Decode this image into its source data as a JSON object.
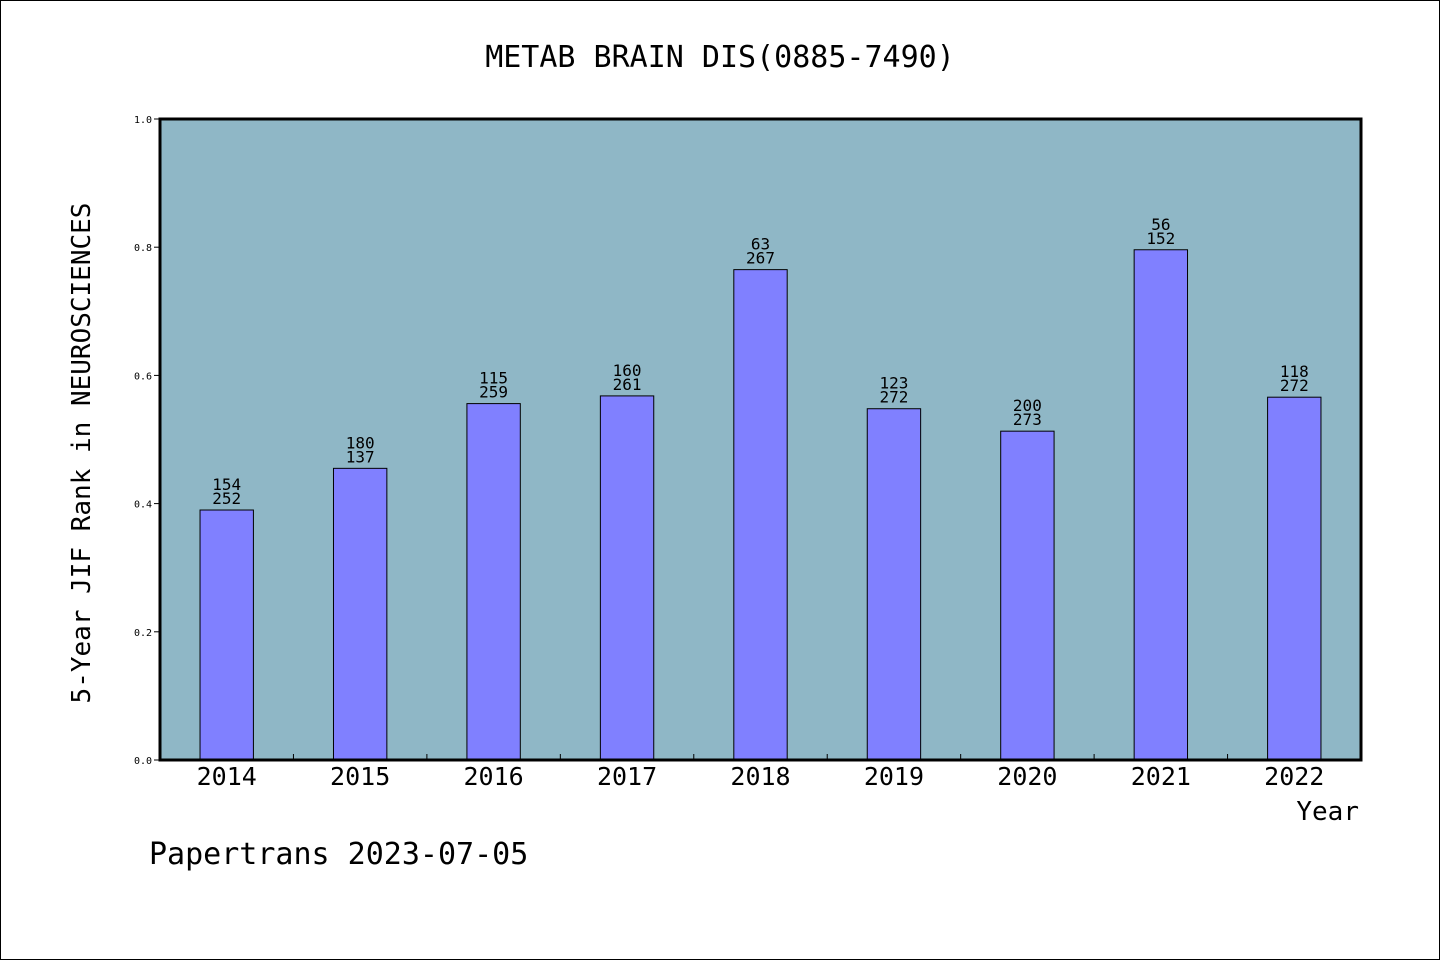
{
  "chart_data": {
    "type": "bar",
    "title": "METAB BRAIN DIS(0885-7490)",
    "xlabel": "Year",
    "ylabel": "5-Year JIF Rank in NEUROSCIENCES",
    "ylim": [
      0.0,
      1.0
    ],
    "yticks": [
      "0.0",
      "0.2",
      "0.4",
      "0.6",
      "0.8",
      "1.0"
    ],
    "categories": [
      "2014",
      "2015",
      "2016",
      "2017",
      "2018",
      "2019",
      "2020",
      "2021",
      "2022"
    ],
    "values": [
      0.39,
      0.455,
      0.556,
      0.568,
      0.765,
      0.548,
      0.513,
      0.796,
      0.566
    ],
    "labels_top": [
      "154",
      "180",
      "115",
      "160",
      "63",
      "123",
      "200",
      "56",
      "118"
    ],
    "labels_bottom": [
      "252",
      "137",
      "259",
      "261",
      "267",
      "272",
      "273",
      "152",
      "272"
    ],
    "grid": false,
    "colors": {
      "plot_bg": "#8fb7c6",
      "bar": "#8080ff",
      "axis": "#000000"
    }
  },
  "footer": {
    "text": "Papertrans 2023-07-05"
  }
}
